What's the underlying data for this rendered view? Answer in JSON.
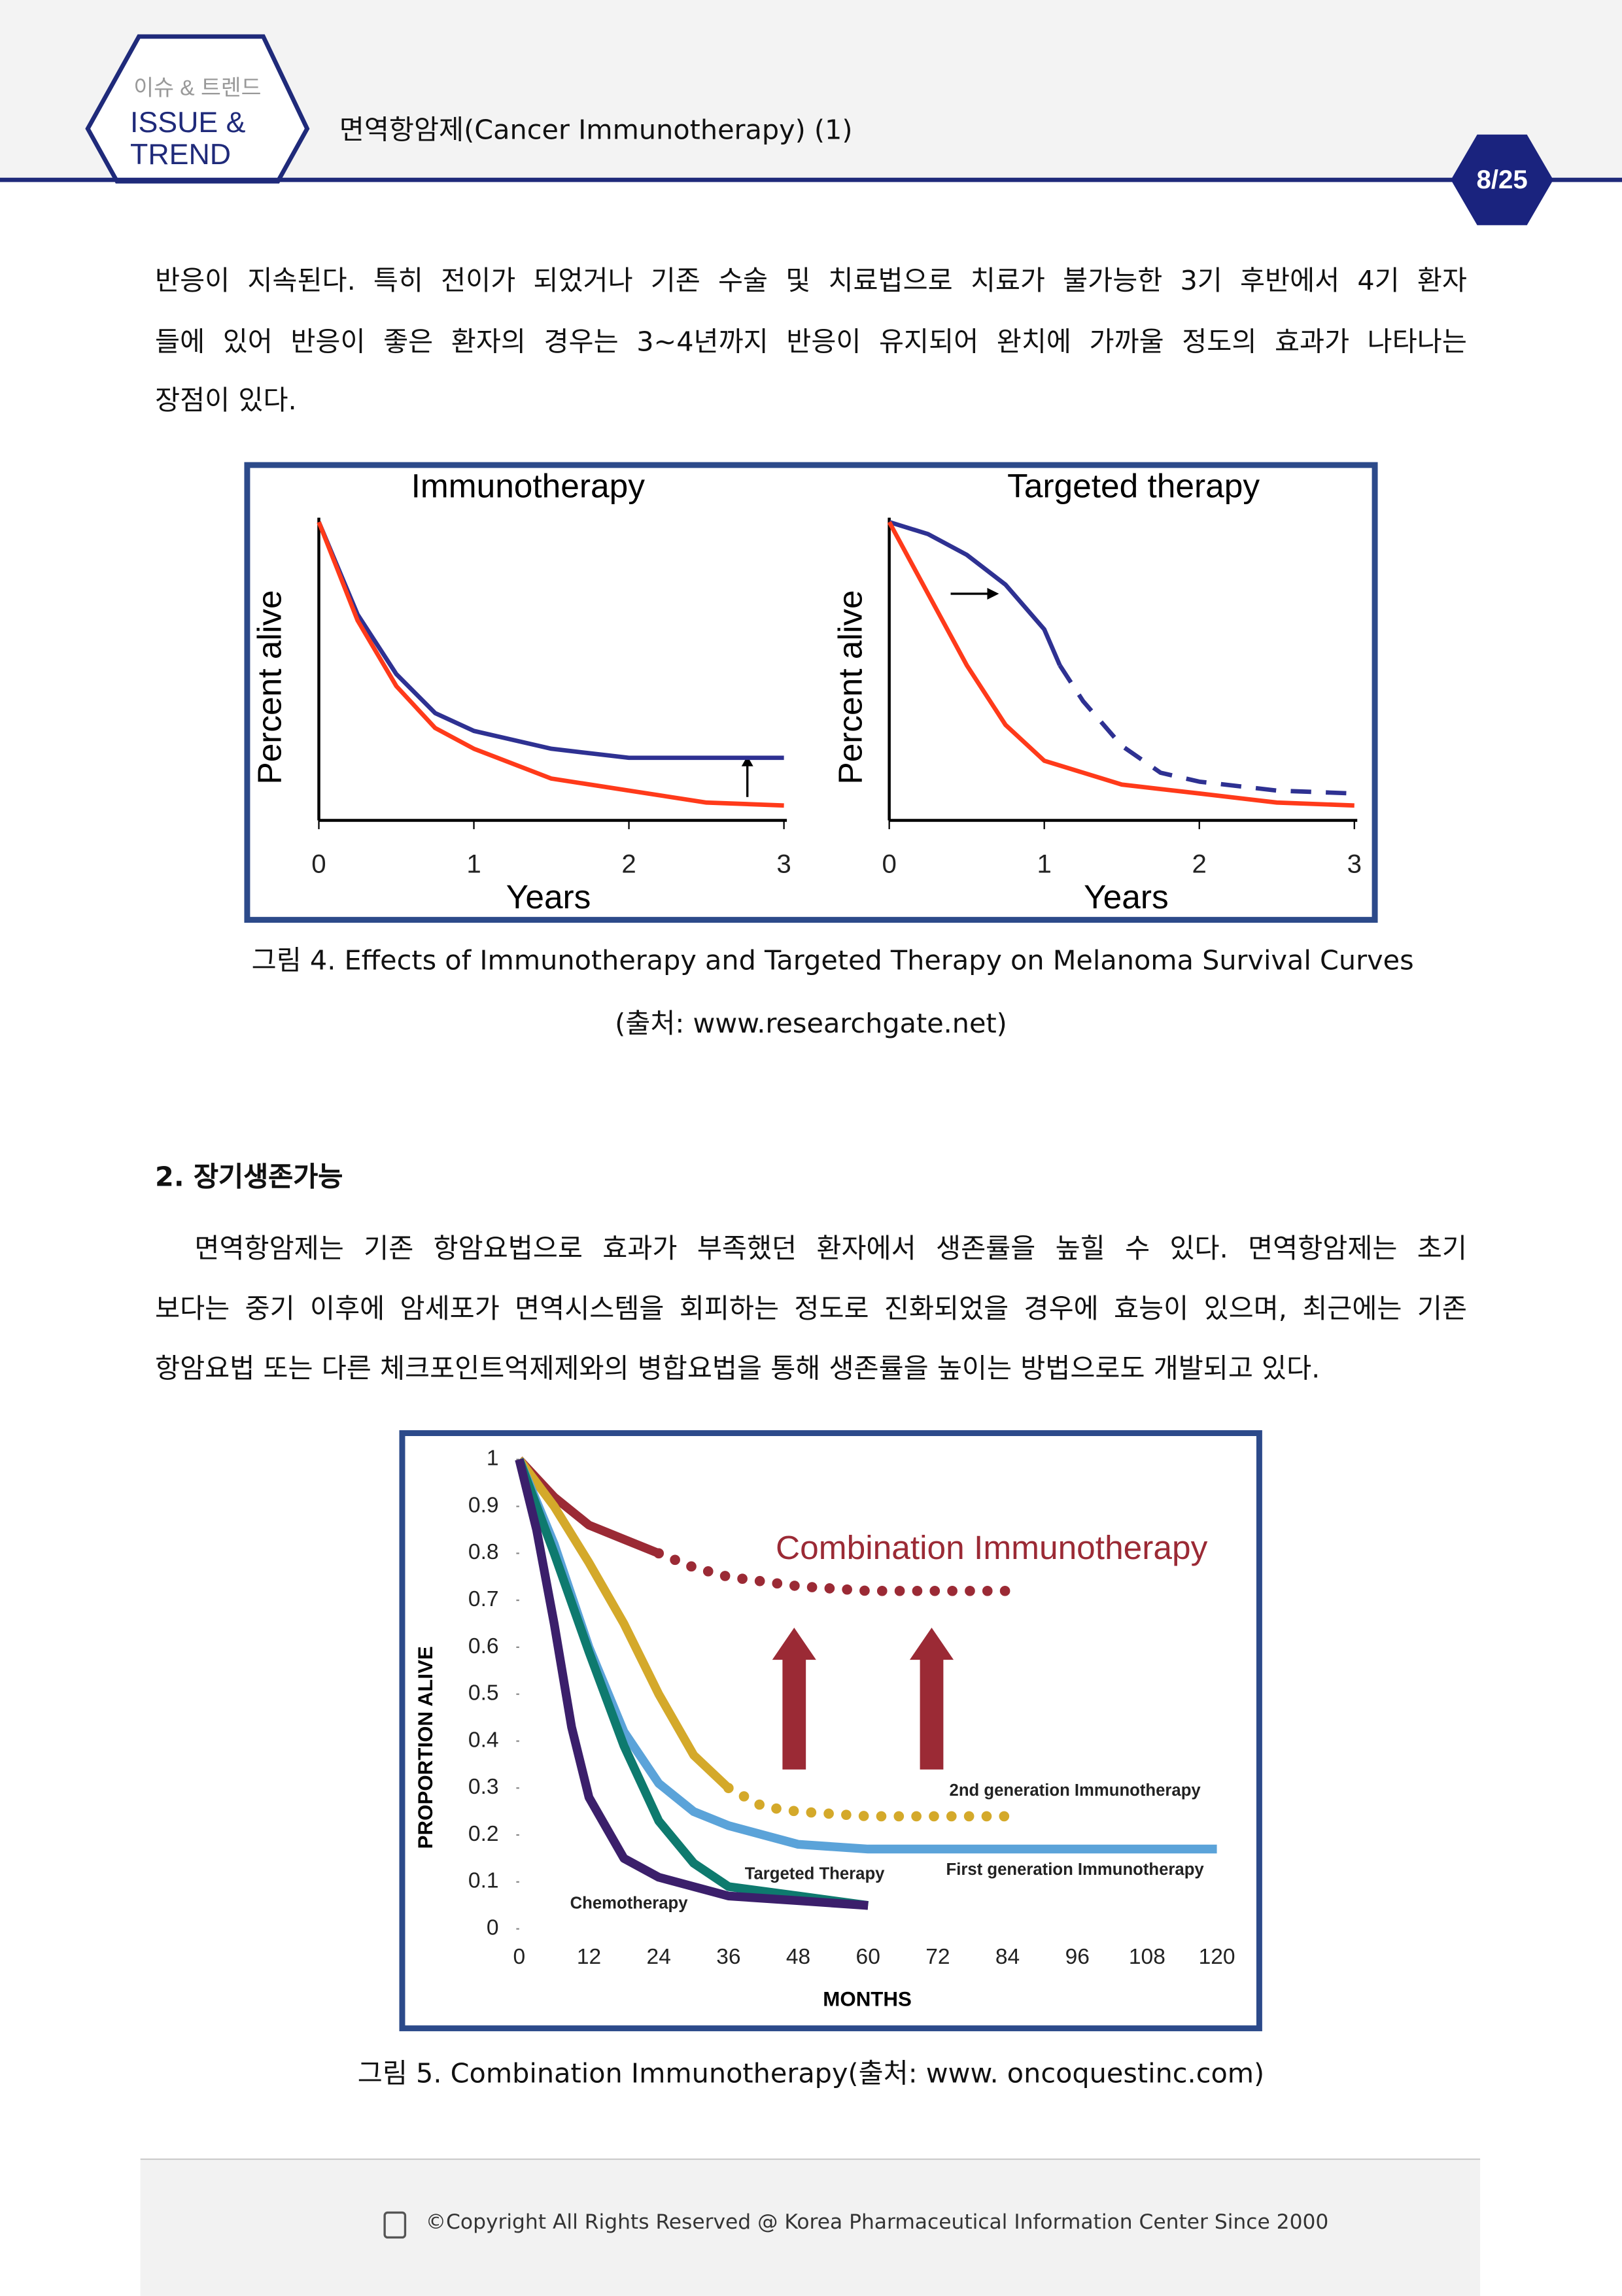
{
  "header": {
    "badge_small": "이슈 & 트렌드",
    "badge_line1": "ISSUE &",
    "badge_line2": "TREND",
    "title": "면역항암제(Cancer Immunotherapy) (1)",
    "page": "8/25"
  },
  "paragraph1": [
    "반응이 지속된다. 특히 전이가 되었거나 기존 수술 및 치료법으로 치료가 불가능한 3기 후반에서 4기 환자",
    "들에 있어 반응이 좋은 환자의 경우는 3~4년까지 반응이 유지되어 완치에 가까울 정도의 효과가 나타나는",
    "장점이 있다."
  ],
  "figure4": {
    "charts": [
      {
        "type": "line",
        "title": "Immunotherapy",
        "ylabel": "Percent alive",
        "xlabel": "Years",
        "xlim": [
          0,
          3
        ],
        "xticks": [
          0,
          1,
          2,
          3
        ],
        "ylim": [
          0,
          100
        ],
        "series": [
          {
            "color": "#2e3192",
            "x": [
              0,
              0.25,
              0.5,
              0.75,
              1,
              1.5,
              2,
              2.5,
              3
            ],
            "values": [
              100,
              69,
              49,
              36,
              30,
              24,
              21,
              21,
              21
            ]
          },
          {
            "color": "#ff3a1a",
            "x": [
              0,
              0.25,
              0.5,
              0.75,
              1,
              1.5,
              2,
              2.5,
              3
            ],
            "values": [
              100,
              67,
              45,
              31,
              24,
              14,
              10,
              6,
              5
            ]
          }
        ]
      },
      {
        "type": "line",
        "title": "Targeted therapy",
        "ylabel": "Percent alive",
        "xlabel": "Years",
        "xlim": [
          0,
          3
        ],
        "xticks": [
          0,
          1,
          2,
          3
        ],
        "ylim": [
          0,
          100
        ],
        "series": [
          {
            "color": "#2e3192",
            "dashed_from_x": 1.1,
            "x": [
              0,
              0.25,
              0.5,
              0.75,
              1,
              1.1,
              1.25,
              1.5,
              1.75,
              2,
              2.5,
              3
            ],
            "values": [
              100,
              96,
              89,
              79,
              64,
              52,
              40,
              25,
              16,
              13,
              10,
              9
            ]
          },
          {
            "color": "#ff3a1a",
            "x": [
              0,
              0.25,
              0.5,
              0.75,
              1,
              1.5,
              2,
              2.5,
              3
            ],
            "values": [
              100,
              76,
              52,
              32,
              20,
              12,
              9,
              6,
              5
            ]
          }
        ]
      }
    ],
    "caption": "그림 4. Effects of Immunotherapy and Targeted Therapy on Melanoma Survival Curves",
    "source": "(출처: www.researchgate.net)"
  },
  "section2": {
    "heading": "2. 장기생존가능",
    "paragraph": [
      "면역항암제는 기존 항암요법으로 효과가 부족했던 환자에서 생존률을 높힐 수 있다. 면역항암제는 초기",
      "보다는 중기 이후에 암세포가 면역시스템을 회피하는 정도로 진화되었을 경우에 효능이 있으며, 최근에는 기존",
      "항암요법 또는 다른 체크포인트억제제와의 병합요법을 통해 생존률을 높이는 방법으로도 개발되고 있다."
    ]
  },
  "figure5": {
    "chart": {
      "type": "line",
      "xlabel": "MONTHS",
      "ylabel": "PROPORTION ALIVE",
      "xlim": [
        0,
        120
      ],
      "xticks": [
        0,
        12,
        24,
        36,
        48,
        60,
        72,
        84,
        96,
        108,
        120
      ],
      "ylim": [
        0,
        1
      ],
      "yticks": [
        0,
        0.1,
        0.2,
        0.3,
        0.4,
        0.5,
        0.6,
        0.7,
        0.8,
        0.9,
        1
      ],
      "series": [
        {
          "name": "Combination Immunotherapy",
          "color": "#9b2a35",
          "dotted_from_x": 24,
          "x": [
            0,
            6,
            12,
            18,
            24,
            30,
            36,
            48,
            60,
            72,
            84
          ],
          "values": [
            1,
            0.92,
            0.86,
            0.83,
            0.8,
            0.77,
            0.75,
            0.73,
            0.72,
            0.72,
            0.72
          ]
        },
        {
          "name": "2nd generation Immunotherapy",
          "color": "#d4a92a",
          "dotted_from_x": 36,
          "x": [
            0,
            6,
            12,
            18,
            24,
            30,
            36,
            42,
            48,
            60,
            72,
            84
          ],
          "values": [
            1,
            0.9,
            0.78,
            0.65,
            0.5,
            0.37,
            0.3,
            0.26,
            0.25,
            0.24,
            0.24,
            0.24
          ]
        },
        {
          "name": "First generation Immunotherapy",
          "color": "#5ba3d9",
          "x": [
            0,
            6,
            12,
            18,
            24,
            30,
            36,
            48,
            60,
            72,
            84,
            96,
            108,
            120
          ],
          "values": [
            1,
            0.82,
            0.6,
            0.42,
            0.31,
            0.25,
            0.22,
            0.18,
            0.17,
            0.17,
            0.17,
            0.17,
            0.17,
            0.17
          ]
        },
        {
          "name": "Targeted Therapy",
          "color": "#0e7a6e",
          "x": [
            0,
            6,
            12,
            18,
            24,
            30,
            36,
            48,
            60
          ],
          "values": [
            1,
            0.8,
            0.59,
            0.39,
            0.23,
            0.14,
            0.09,
            0.07,
            0.05
          ]
        },
        {
          "name": "Chemotherapy",
          "color": "#3b1f6b",
          "x": [
            0,
            3,
            6,
            9,
            12,
            18,
            24,
            36,
            48,
            60
          ],
          "values": [
            1,
            0.85,
            0.65,
            0.43,
            0.28,
            0.15,
            0.11,
            0.07,
            0.06,
            0.05
          ]
        }
      ]
    },
    "caption": "그림 5. Combination Immunotherapy(출처: www. oncoquestinc.com)"
  },
  "footer": {
    "copyright": "©Copyright All Rights Reserved @ Korea Pharmaceutical Information Center Since 2000"
  }
}
